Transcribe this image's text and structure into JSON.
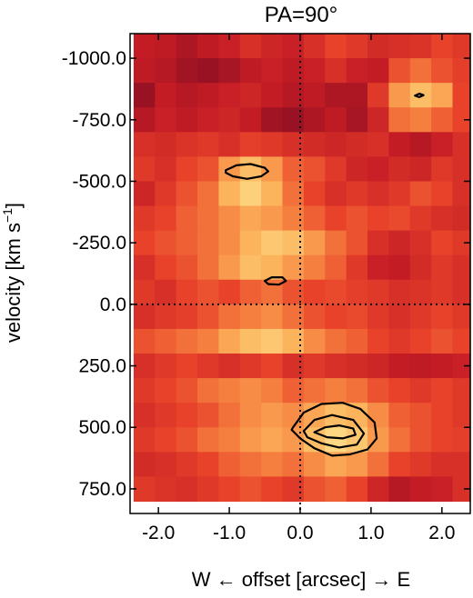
{
  "chart_data": {
    "type": "heatmap",
    "title": "PA=90°",
    "xlabel": "W ← offset [arcsec] → E",
    "ylabel_main": "velocity [km s",
    "ylabel_sup": "−1",
    "ylabel_close": "]",
    "xlim": [
      -2.4,
      2.4
    ],
    "ylim": [
      -1100,
      850
    ],
    "x_ticks": [
      -2.0,
      -1.0,
      0.0,
      1.0,
      2.0
    ],
    "x_tick_labels": [
      "-2.0",
      "-1.0",
      "0.0",
      "1.0",
      "2.0"
    ],
    "y_ticks": [
      -1000,
      -750,
      -500,
      -250,
      0,
      250,
      500,
      750
    ],
    "y_tick_labels": [
      "-1000.0",
      "-750.0",
      "-500.0",
      "-250.0",
      "0.0",
      "250.0",
      "500.0",
      "750.0"
    ],
    "reference_lines": {
      "x": 0.0,
      "y": 0.0,
      "style": "dotted"
    },
    "colormap": [
      "#8a0f22",
      "#c41c25",
      "#e8432a",
      "#f57f3e",
      "#fbb35c",
      "#fedb86"
    ],
    "grid": {
      "x_centers": [
        -2.2,
        -1.9,
        -1.6,
        -1.3,
        -1.0,
        -0.7,
        -0.4,
        -0.1,
        0.2,
        0.5,
        0.8,
        1.1,
        1.4,
        1.7,
        2.0,
        2.3
      ],
      "y_centers": [
        -1050,
        -950,
        -850,
        -750,
        -650,
        -550,
        -450,
        -350,
        -250,
        -150,
        -50,
        50,
        150,
        250,
        350,
        450,
        550,
        650,
        750
      ],
      "values": [
        [
          0.2,
          0.18,
          0.12,
          0.18,
          0.22,
          0.3,
          0.25,
          0.22,
          0.3,
          0.4,
          0.35,
          0.28,
          0.3,
          0.32,
          0.4,
          0.35
        ],
        [
          0.18,
          0.15,
          0.08,
          0.05,
          0.1,
          0.18,
          0.22,
          0.18,
          0.22,
          0.3,
          0.22,
          0.2,
          0.45,
          0.55,
          0.45,
          0.38
        ],
        [
          0.05,
          0.2,
          0.15,
          0.18,
          0.22,
          0.25,
          0.2,
          0.15,
          0.18,
          0.12,
          0.12,
          0.35,
          0.7,
          0.85,
          0.75,
          0.4
        ],
        [
          0.15,
          0.22,
          0.18,
          0.22,
          0.25,
          0.2,
          0.08,
          0.05,
          0.12,
          0.18,
          0.1,
          0.25,
          0.55,
          0.6,
          0.5,
          0.4
        ],
        [
          0.3,
          0.28,
          0.32,
          0.35,
          0.3,
          0.38,
          0.35,
          0.3,
          0.28,
          0.25,
          0.28,
          0.3,
          0.2,
          0.15,
          0.22,
          0.3
        ],
        [
          0.35,
          0.3,
          0.4,
          0.45,
          0.7,
          0.85,
          0.7,
          0.5,
          0.45,
          0.35,
          0.25,
          0.22,
          0.28,
          0.25,
          0.35,
          0.3
        ],
        [
          0.25,
          0.35,
          0.45,
          0.55,
          0.8,
          0.95,
          0.8,
          0.55,
          0.4,
          0.3,
          0.35,
          0.3,
          0.35,
          0.45,
          0.4,
          0.3
        ],
        [
          0.35,
          0.4,
          0.5,
          0.55,
          0.65,
          0.75,
          0.7,
          0.6,
          0.5,
          0.4,
          0.45,
          0.4,
          0.42,
          0.35,
          0.3,
          0.28
        ],
        [
          0.4,
          0.45,
          0.5,
          0.55,
          0.65,
          0.8,
          0.9,
          0.85,
          0.7,
          0.55,
          0.45,
          0.3,
          0.25,
          0.3,
          0.4,
          0.35
        ],
        [
          0.3,
          0.4,
          0.45,
          0.55,
          0.7,
          0.85,
          0.8,
          0.7,
          0.6,
          0.5,
          0.35,
          0.22,
          0.2,
          0.28,
          0.35,
          0.3
        ],
        [
          0.35,
          0.3,
          0.4,
          0.45,
          0.4,
          0.5,
          0.55,
          0.45,
          0.4,
          0.42,
          0.38,
          0.35,
          0.3,
          0.32,
          0.35,
          0.3
        ],
        [
          0.3,
          0.35,
          0.38,
          0.45,
          0.55,
          0.6,
          0.65,
          0.55,
          0.45,
          0.4,
          0.42,
          0.35,
          0.3,
          0.35,
          0.4,
          0.35
        ],
        [
          0.45,
          0.5,
          0.55,
          0.6,
          0.75,
          0.85,
          0.9,
          0.8,
          0.65,
          0.55,
          0.5,
          0.4,
          0.35,
          0.4,
          0.45,
          0.4
        ],
        [
          0.3,
          0.35,
          0.4,
          0.35,
          0.3,
          0.35,
          0.4,
          0.3,
          0.35,
          0.3,
          0.28,
          0.25,
          0.2,
          0.18,
          0.2,
          0.22
        ],
        [
          0.35,
          0.4,
          0.45,
          0.55,
          0.6,
          0.65,
          0.6,
          0.5,
          0.55,
          0.6,
          0.55,
          0.45,
          0.4,
          0.35,
          0.4,
          0.35
        ],
        [
          0.3,
          0.35,
          0.4,
          0.45,
          0.55,
          0.65,
          0.7,
          0.65,
          0.75,
          0.85,
          0.8,
          0.65,
          0.5,
          0.45,
          0.4,
          0.35
        ],
        [
          0.35,
          0.4,
          0.45,
          0.55,
          0.6,
          0.7,
          0.75,
          0.7,
          0.85,
          0.98,
          0.9,
          0.7,
          0.55,
          0.45,
          0.4,
          0.38
        ],
        [
          0.28,
          0.3,
          0.35,
          0.4,
          0.5,
          0.55,
          0.6,
          0.55,
          0.65,
          0.75,
          0.7,
          0.55,
          0.4,
          0.35,
          0.3,
          0.3
        ],
        [
          0.35,
          0.32,
          0.3,
          0.35,
          0.4,
          0.45,
          0.4,
          0.35,
          0.45,
          0.5,
          0.4,
          0.25,
          0.15,
          0.2,
          0.22,
          0.3
        ]
      ]
    },
    "contours": [
      {
        "points": [
          [
            -1.05,
            -545
          ],
          [
            -0.9,
            -565
          ],
          [
            -0.7,
            -570
          ],
          [
            -0.5,
            -555
          ],
          [
            -0.45,
            -540
          ],
          [
            -0.55,
            -520
          ],
          [
            -0.75,
            -510
          ],
          [
            -0.95,
            -520
          ],
          [
            -1.05,
            -535
          ]
        ]
      },
      {
        "points": [
          [
            -0.5,
            -95
          ],
          [
            -0.4,
            -110
          ],
          [
            -0.25,
            -110
          ],
          [
            -0.2,
            -95
          ],
          [
            -0.3,
            -80
          ],
          [
            -0.45,
            -82
          ]
        ]
      },
      {
        "points": [
          [
            1.62,
            -848
          ],
          [
            1.68,
            -856
          ],
          [
            1.74,
            -850
          ],
          [
            1.68,
            -842
          ]
        ]
      },
      {
        "points": [
          [
            -0.1,
            500
          ],
          [
            0.05,
            440
          ],
          [
            0.3,
            405
          ],
          [
            0.6,
            400
          ],
          [
            0.85,
            425
          ],
          [
            1.05,
            480
          ],
          [
            1.08,
            545
          ],
          [
            0.95,
            590
          ],
          [
            0.7,
            610
          ],
          [
            0.45,
            615
          ],
          [
            0.2,
            585
          ],
          [
            0.0,
            545
          ],
          [
            -0.12,
            510
          ]
        ]
      },
      {
        "points": [
          [
            0.05,
            515
          ],
          [
            0.2,
            470
          ],
          [
            0.45,
            450
          ],
          [
            0.75,
            470
          ],
          [
            0.9,
            525
          ],
          [
            0.8,
            570
          ],
          [
            0.55,
            582
          ],
          [
            0.3,
            565
          ],
          [
            0.1,
            540
          ]
        ]
      },
      {
        "points": [
          [
            0.2,
            520
          ],
          [
            0.35,
            500
          ],
          [
            0.55,
            492
          ],
          [
            0.75,
            505
          ],
          [
            0.78,
            530
          ],
          [
            0.6,
            545
          ],
          [
            0.38,
            540
          ]
        ]
      }
    ]
  }
}
